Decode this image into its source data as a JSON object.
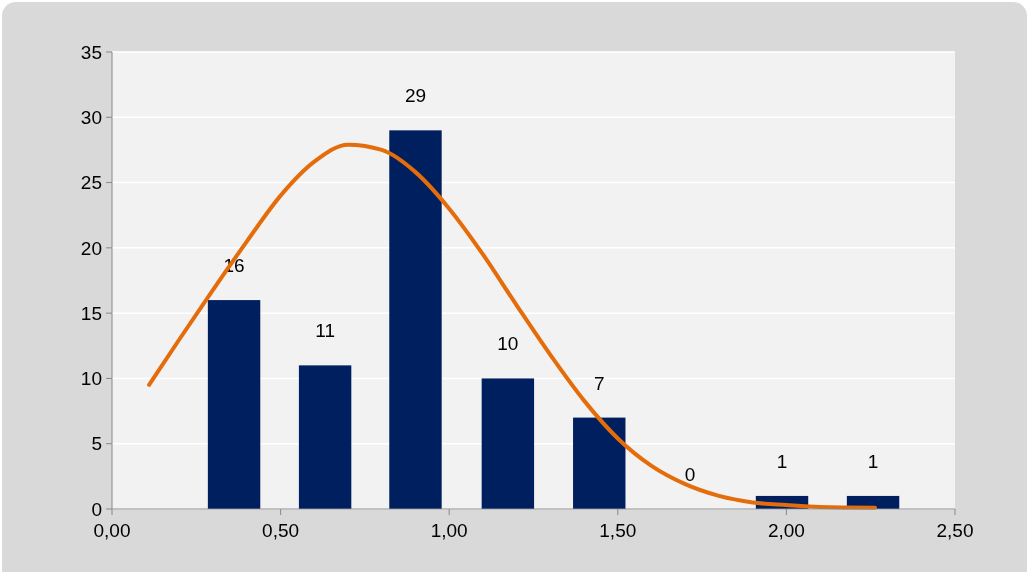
{
  "chart_data": {
    "type": "bar",
    "x": [
      0.362,
      0.632,
      0.9,
      1.174,
      1.445,
      1.714,
      1.987,
      2.257
    ],
    "series": [
      {
        "color": "#001f5f",
        "values": [
          16,
          11,
          29,
          10,
          7,
          0,
          1,
          1
        ],
        "value_labels": [
          "16",
          "11",
          "29",
          "10",
          "7",
          "0",
          "1",
          "1"
        ]
      },
      {
        "type": "line",
        "color": "#e46c0a",
        "x": [
          0.11,
          0.2,
          0.3,
          0.4,
          0.5,
          0.6,
          0.7,
          0.8,
          0.9,
          1.0,
          1.1,
          1.2,
          1.3,
          1.4,
          1.5,
          1.6,
          1.7,
          1.8,
          1.9,
          2.0,
          2.1,
          2.263
        ],
        "values": [
          9.5,
          13,
          16.8,
          20.5,
          24,
          26.6,
          27.9,
          27.5,
          25.8,
          23,
          19.5,
          15.6,
          11.8,
          8.3,
          5.4,
          3.3,
          1.9,
          1.0,
          0.5,
          0.3,
          0.15,
          0.1
        ]
      }
    ],
    "xlim": [
      0,
      2.5
    ],
    "xticks": [
      {
        "value": 0,
        "label": "0,00"
      },
      {
        "value": 0.5,
        "label": "0,50"
      },
      {
        "value": 1,
        "label": "1,00"
      },
      {
        "value": 1.5,
        "label": "1,50"
      },
      {
        "value": 2,
        "label": "2,00"
      },
      {
        "value": 2.5,
        "label": "2,50"
      }
    ],
    "ylim": [
      0,
      35
    ],
    "yticks": [
      0,
      5,
      10,
      15,
      20,
      25,
      30,
      35
    ],
    "grid": "y",
    "marker": "none",
    "line_style": "solid"
  }
}
